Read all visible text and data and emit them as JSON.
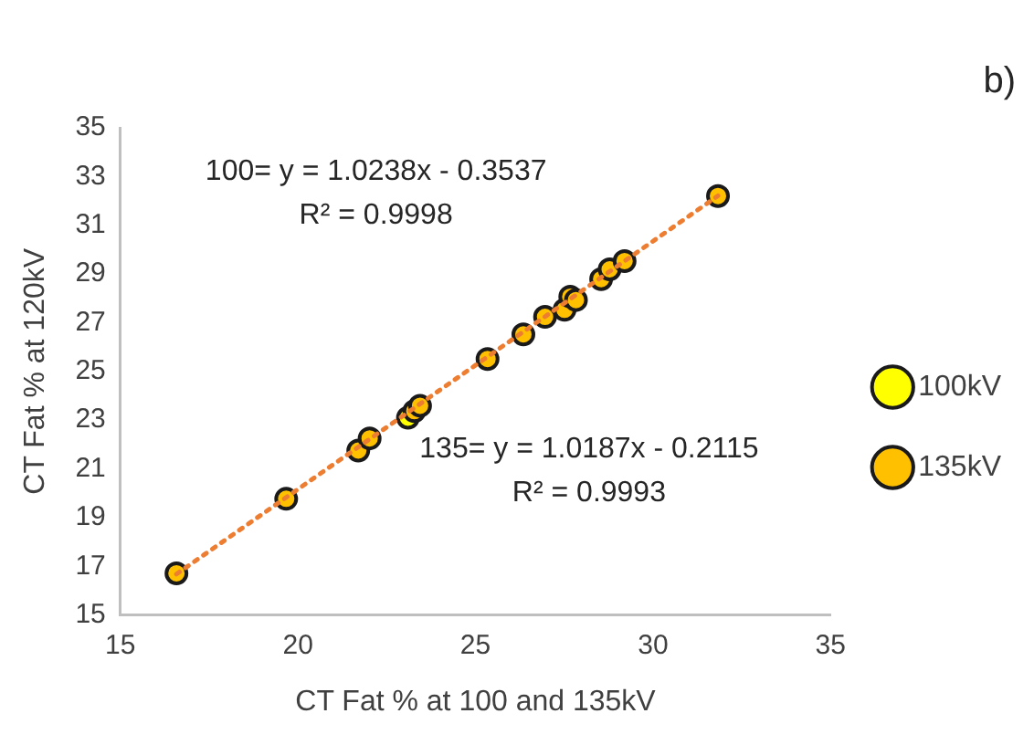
{
  "chart_data": {
    "type": "scatter",
    "title": "b)",
    "xlabel": "CT Fat % at 100 and 135kV",
    "ylabel": "CT Fat % at 120kV",
    "xlim": [
      15,
      35
    ],
    "xticks": [
      15,
      20,
      25,
      30,
      35
    ],
    "ylim": [
      15,
      35
    ],
    "yticks": [
      15,
      17,
      19,
      21,
      23,
      25,
      27,
      29,
      31,
      33,
      35
    ],
    "grid": false,
    "legend": "right",
    "marker": "circle",
    "series": [
      {
        "name": "100kV",
        "color": "#ffff00",
        "x": [
          23.1
        ],
        "values": [
          23.1
        ]
      },
      {
        "name": "135kV",
        "color": "#ffc000",
        "x": [
          16.58,
          19.67,
          21.7,
          22.02,
          23.28,
          23.44,
          25.34,
          26.35,
          26.96,
          27.51,
          27.67,
          27.83,
          28.54,
          28.78,
          29.2,
          31.83
        ],
        "values": [
          16.71,
          19.77,
          21.75,
          22.25,
          23.37,
          23.59,
          25.51,
          26.52,
          27.24,
          27.53,
          28.07,
          27.93,
          28.79,
          29.19,
          29.53,
          32.2
        ]
      },
      {
        "type": "line",
        "color": "#ed7d31",
        "line_style": "dotted",
        "marker": "none",
        "x": [
          16.58,
          31.83
        ],
        "values": [
          16.68,
          32.21
        ]
      }
    ],
    "annotations": [
      "100= y = 1.0238x - 0.3537",
      "R² = 0.9998",
      "135= y = 1.0187x - 0.2115",
      "R² = 0.9993"
    ]
  }
}
